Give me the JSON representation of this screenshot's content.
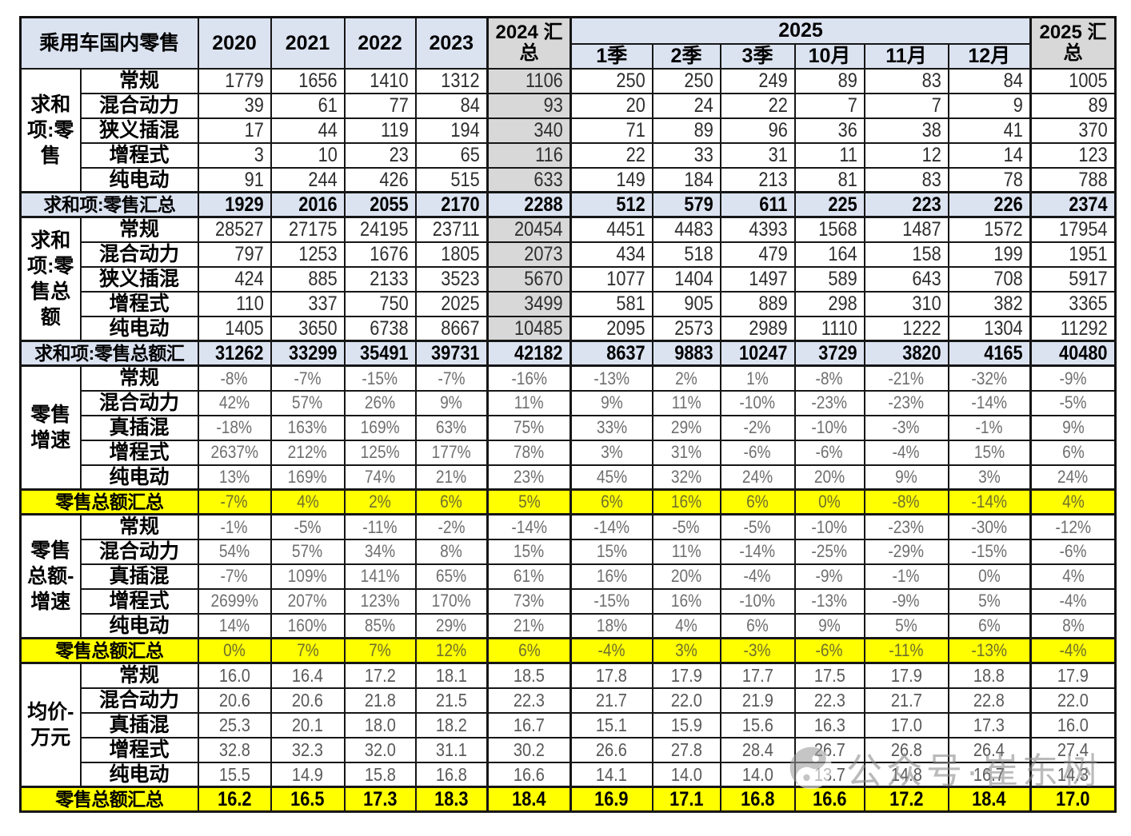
{
  "colors": {
    "header_blue": "#dbe3f1",
    "shade_grey": "#d8d8d8",
    "highlight_yellow": "#ffff00"
  },
  "watermark": {
    "icon": "yinyang-icon",
    "text": "公众号·崔东树"
  },
  "chart_data": {
    "type": "table",
    "title": "乘用车国内零售",
    "columns": [
      "2020",
      "2021",
      "2022",
      "2023",
      "2024 汇总",
      "1季",
      "2季",
      "3季",
      "10月",
      "11月",
      "12月",
      "2025 汇总"
    ],
    "top_cols": [
      "2020",
      "2021",
      "2022",
      "2023"
    ],
    "col_2024_sum": "2024 汇总",
    "col_2025_group": "2025",
    "col_2025_sum": "2025 汇总",
    "sub_cols": [
      "1季",
      "2季",
      "3季",
      "10月",
      "11月",
      "12月"
    ],
    "sections": [
      {
        "group": "求和项:零售",
        "type": "int",
        "shade_2024": true,
        "rows": [
          {
            "label": "常规",
            "values": [
              "1779",
              "1656",
              "1410",
              "1312",
              "1106",
              "250",
              "250",
              "249",
              "89",
              "83",
              "84",
              "1005"
            ]
          },
          {
            "label": "混合动力",
            "values": [
              "39",
              "61",
              "77",
              "84",
              "93",
              "20",
              "24",
              "22",
              "7",
              "7",
              "9",
              "89"
            ]
          },
          {
            "label": "狭义插混",
            "values": [
              "17",
              "44",
              "119",
              "194",
              "340",
              "71",
              "89",
              "96",
              "36",
              "38",
              "41",
              "370"
            ]
          },
          {
            "label": "增程式",
            "values": [
              "3",
              "10",
              "23",
              "65",
              "116",
              "22",
              "33",
              "31",
              "11",
              "12",
              "14",
              "123"
            ]
          },
          {
            "label": "纯电动",
            "values": [
              "91",
              "244",
              "426",
              "515",
              "633",
              "149",
              "184",
              "213",
              "81",
              "83",
              "78",
              "788"
            ]
          }
        ],
        "summary": {
          "label": "求和项:零售汇总",
          "style": "blue",
          "values": [
            "1929",
            "2016",
            "2055",
            "2170",
            "2288",
            "512",
            "579",
            "611",
            "225",
            "223",
            "226",
            "2374"
          ]
        }
      },
      {
        "group": "求和项:零售总额",
        "type": "int",
        "shade_2024": true,
        "rows": [
          {
            "label": "常规",
            "values": [
              "28527",
              "27175",
              "24195",
              "23711",
              "20454",
              "4451",
              "4483",
              "4393",
              "1568",
              "1487",
              "1572",
              "17954"
            ]
          },
          {
            "label": "混合动力",
            "values": [
              "797",
              "1253",
              "1676",
              "1805",
              "2073",
              "434",
              "518",
              "479",
              "164",
              "158",
              "199",
              "1951"
            ]
          },
          {
            "label": "狭义插混",
            "values": [
              "424",
              "885",
              "2133",
              "3523",
              "5670",
              "1077",
              "1404",
              "1497",
              "589",
              "643",
              "708",
              "5917"
            ]
          },
          {
            "label": "增程式",
            "values": [
              "110",
              "337",
              "750",
              "2025",
              "3499",
              "581",
              "905",
              "889",
              "298",
              "310",
              "382",
              "3365"
            ]
          },
          {
            "label": "纯电动",
            "values": [
              "1405",
              "3650",
              "6738",
              "8667",
              "10485",
              "2095",
              "2573",
              "2989",
              "1110",
              "1222",
              "1304",
              "11292"
            ]
          }
        ],
        "summary": {
          "label": "求和项:零售总额汇",
          "style": "blue",
          "values": [
            "31262",
            "33299",
            "35491",
            "39731",
            "42182",
            "8637",
            "9883",
            "10247",
            "3729",
            "3820",
            "4165",
            "40480"
          ]
        }
      },
      {
        "group": "零售增速",
        "type": "pct",
        "shade_2024": false,
        "rows": [
          {
            "label": "常规",
            "values": [
              "-8%",
              "-7%",
              "-15%",
              "-7%",
              "-16%",
              "-13%",
              "2%",
              "1%",
              "-8%",
              "-21%",
              "-32%",
              "-9%"
            ]
          },
          {
            "label": "混合动力",
            "values": [
              "42%",
              "57%",
              "26%",
              "9%",
              "11%",
              "9%",
              "11%",
              "-10%",
              "-23%",
              "-23%",
              "-14%",
              "-5%"
            ]
          },
          {
            "label": "真插混",
            "values": [
              "-18%",
              "163%",
              "169%",
              "63%",
              "75%",
              "33%",
              "29%",
              "-2%",
              "-10%",
              "-3%",
              "-1%",
              "9%"
            ]
          },
          {
            "label": "增程式",
            "values": [
              "2637%",
              "212%",
              "125%",
              "177%",
              "78%",
              "3%",
              "31%",
              "-6%",
              "-6%",
              "-4%",
              "15%",
              "6%"
            ]
          },
          {
            "label": "纯电动",
            "values": [
              "13%",
              "169%",
              "74%",
              "21%",
              "23%",
              "45%",
              "32%",
              "24%",
              "20%",
              "9%",
              "3%",
              "24%"
            ]
          }
        ],
        "summary": {
          "label": "零售总额汇总",
          "style": "yellow",
          "values": [
            "-7%",
            "4%",
            "2%",
            "6%",
            "5%",
            "6%",
            "16%",
            "6%",
            "0%",
            "-8%",
            "-14%",
            "4%"
          ]
        }
      },
      {
        "group": "零售总额-增速",
        "type": "pct",
        "shade_2024": false,
        "rows": [
          {
            "label": "常规",
            "values": [
              "-1%",
              "-5%",
              "-11%",
              "-2%",
              "-14%",
              "-14%",
              "-5%",
              "-5%",
              "-10%",
              "-23%",
              "-30%",
              "-12%"
            ]
          },
          {
            "label": "混合动力",
            "values": [
              "54%",
              "57%",
              "34%",
              "8%",
              "15%",
              "15%",
              "11%",
              "-14%",
              "-25%",
              "-29%",
              "-15%",
              "-6%"
            ]
          },
          {
            "label": "真插混",
            "values": [
              "-7%",
              "109%",
              "141%",
              "65%",
              "61%",
              "16%",
              "20%",
              "-4%",
              "-9%",
              "-1%",
              "0%",
              "4%"
            ]
          },
          {
            "label": "增程式",
            "values": [
              "2699%",
              "207%",
              "123%",
              "170%",
              "73%",
              "-15%",
              "16%",
              "-10%",
              "-13%",
              "-9%",
              "5%",
              "-4%"
            ]
          },
          {
            "label": "纯电动",
            "values": [
              "14%",
              "160%",
              "85%",
              "29%",
              "21%",
              "18%",
              "4%",
              "6%",
              "9%",
              "5%",
              "6%",
              "8%"
            ]
          }
        ],
        "summary": {
          "label": "零售总额汇总",
          "style": "yellow",
          "values": [
            "0%",
            "7%",
            "7%",
            "12%",
            "6%",
            "-4%",
            "3%",
            "-3%",
            "-6%",
            "-11%",
            "-13%",
            "-4%"
          ]
        }
      },
      {
        "group": "均价-万元",
        "type": "price",
        "shade_2024": false,
        "rows": [
          {
            "label": "常规",
            "values": [
              "16.0",
              "16.4",
              "17.2",
              "18.1",
              "18.5",
              "17.8",
              "17.9",
              "17.7",
              "17.5",
              "17.9",
              "18.8",
              "17.9"
            ]
          },
          {
            "label": "混合动力",
            "values": [
              "20.6",
              "20.6",
              "21.8",
              "21.5",
              "22.3",
              "21.7",
              "22.0",
              "21.9",
              "22.3",
              "21.7",
              "22.8",
              "22.0"
            ]
          },
          {
            "label": "真插混",
            "values": [
              "25.3",
              "20.1",
              "18.0",
              "18.2",
              "16.7",
              "15.1",
              "15.9",
              "15.6",
              "16.3",
              "17.0",
              "17.3",
              "16.0"
            ]
          },
          {
            "label": "增程式",
            "values": [
              "32.8",
              "32.3",
              "32.0",
              "31.1",
              "30.2",
              "26.6",
              "27.8",
              "28.4",
              "26.7",
              "26.8",
              "26.4",
              "27.4"
            ]
          },
          {
            "label": "纯电动",
            "values": [
              "15.5",
              "14.9",
              "15.8",
              "16.8",
              "16.6",
              "14.1",
              "14.0",
              "14.0",
              "13.7",
              "14.8",
              "16.7",
              "14.3"
            ]
          }
        ],
        "summary": {
          "label": "零售总额汇总",
          "style": "yellow-bold",
          "values": [
            "16.2",
            "16.5",
            "17.3",
            "18.3",
            "18.4",
            "16.9",
            "17.1",
            "16.8",
            "16.6",
            "17.2",
            "18.4",
            "17.0"
          ]
        }
      }
    ]
  }
}
